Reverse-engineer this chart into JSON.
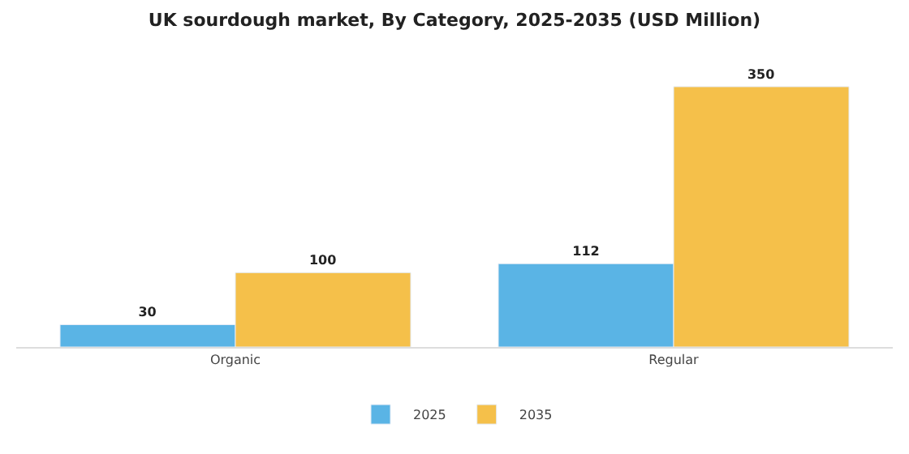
{
  "chart_data": {
    "type": "bar",
    "title": "UK sourdough market, By Category, 2025-2035 (USD Million)",
    "categories": [
      "Organic",
      "Regular"
    ],
    "series": [
      {
        "name": "2025",
        "color": "#5ab4e5",
        "values": [
          30,
          112
        ]
      },
      {
        "name": "2035",
        "color": "#f5c04a",
        "values": [
          100,
          350
        ]
      }
    ],
    "data_labels": true,
    "legend": "bottom",
    "tick_labels": "x"
  }
}
